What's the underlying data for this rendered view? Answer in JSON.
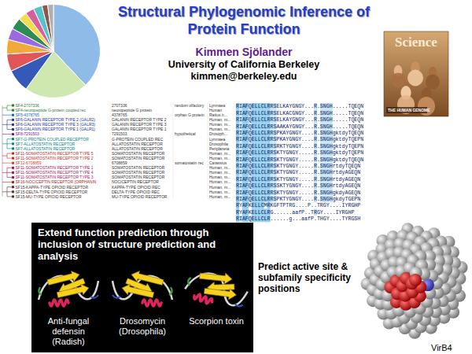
{
  "title": "Structural Phylogenomic Inference of Protein Function",
  "author": {
    "name": "Kimmen Sjölander",
    "affiliation": "University of California Berkeley",
    "email": "kimmen@berkeley.edu"
  },
  "cover": {
    "masthead": "Science",
    "headline": "THE HUMAN GENOME"
  },
  "chart_data": {
    "type": "pie",
    "values": [
      38,
      22,
      8,
      6,
      5,
      4,
      4,
      3,
      3,
      3,
      2,
      2
    ],
    "colors": [
      "#8fbbe8",
      "#cfe8b0",
      "#3559b8",
      "#e15759",
      "#f2a93b",
      "#9c6ade",
      "#2e8b57",
      "#f4dc4c",
      "#d65fa0",
      "#56c2c9",
      "#8c564b",
      "#b0b0b0"
    ]
  },
  "tree_table": {
    "rows": [
      {
        "label": "SF4-2707336",
        "id": "2707336",
        "description": "random olfactory",
        "organism": "Lymnaea"
      },
      {
        "label": "SF4-neuropeptide G-protein coupled rec",
        "id": "neuropeptide G protein",
        "organism": "Human"
      },
      {
        "label": "SF5-4378765",
        "id": "4378765",
        "description": "orphan G protein",
        "organism": "Rattus n..."
      },
      {
        "label": "SF6-GALANIN RECEPTOR TYPE 2 (GALR2)",
        "id": "GALANIN RECEPTOR TYPE 2",
        "organism": "Human, m..."
      },
      {
        "label": "SF6-GALANIN RECEPTOR TYPE 3 (GALR3)",
        "id": "GALANIN RECEPTOR TYPE 3",
        "organism": "Human, m..."
      },
      {
        "label": "SF6-GALANIN RECEPTOR TYPE 1 (GALR1)",
        "id": "GALANIN RECEPTOR TYPE 1",
        "organism": "Human, m..."
      },
      {
        "label": "SF8-7291503",
        "id": "7291503",
        "description": "hypothetical",
        "organism": "Drosoph..."
      },
      {
        "label": "SF7-G-PROTEIN COUPLED RECEPTOR",
        "id": "G-PROTEIN COUPLED REC",
        "organism": "Lymnaea"
      },
      {
        "label": "SF7-ALLATOSTATIN RECEPTOR",
        "id": "ALLATOSTATIN RECEPTOR",
        "organism": "Drosophila"
      },
      {
        "label": "SF7-ALLATOSTATIN RECEPTOR",
        "id": "ALLATOSTATIN RECEPTOR",
        "organism": "Periplaneta"
      },
      {
        "label": "SF11-SOMATOSTATIN RECEPTOR TYPE 5",
        "id": "SOMATOSTATIN RECEPTOR",
        "organism": "Human, m..."
      },
      {
        "label": "SF11-SOMATOSTATIN RECEPTOR TYPE 2",
        "id": "SOMATOSTATIN RECEPTOR",
        "organism": "Human, m..."
      },
      {
        "label": "SF12-6708859",
        "id": "6708859",
        "description": "somatostatin rec",
        "organism": "Carassius"
      },
      {
        "label": "SF11-SOMATOSTATIN RECEPTOR TYPE 1",
        "id": "SOMATOSTATIN RECEPTOR",
        "organism": "Human, m..."
      },
      {
        "label": "SF11-SOMATOSTATIN RECEPTOR TYPE 4",
        "id": "SOMATOSTATIN RECEPTOR",
        "organism": "Human, m..."
      },
      {
        "label": "SF11-SOMATOSTATIN RECEPTOR TYPE 3",
        "id": "SOMATOSTATIN RECEPTOR",
        "organism": "Human, m..."
      },
      {
        "label": "SF16-NOCICEPTIN RECEPTOR (ORPHANIN",
        "id": "NOCICEPTIN RECEPTOR",
        "organism": "Human, m..."
      },
      {
        "label": "SF15-KAPPA-TYPE OPIOID RECEPTOR",
        "id": "KAPPA-TYPE OPIOID REC",
        "organism": "Human, m..."
      },
      {
        "label": "SF15-DELTA-TYPE OPIOID RECEPTOR",
        "id": "DELTA-TYPE OPIOID REC",
        "organism": "Human, m..."
      },
      {
        "label": "SF15-MU-TYPE OPIOID RECEPTOR",
        "id": "MU-TYPE OPIOID RECEPTOR",
        "organism": "Human, m..."
      }
    ]
  },
  "alignment": {
    "sequences": [
      "RIAFQELLCLRRSELKAYGNGY...R.SNGH.....TQEQN",
      "RIAFQELLCLRRSELKACGNGY...R.SNGH.....TQEQN",
      "RIAFQELLCLRRSELKAYGNGY...R.SNGH.....TQEQN",
      "RIAFQELLCLRRSAAKAYGNGY...R.SNGH.....TQEQN",
      "RIAFQELLCLRRSPKAYGNGY....R.SNGHgktdyTQEQN",
      "RIAFQELLCLRRSPKAYGNGY....R.SNGHgktdyTQEPN",
      "RIAFQELLCLRRSRKTYGNGY....R.SNGHgktdyTQEPN",
      "RIAFQELLCLRRSKTYGNGY.....R.SNGHgktdyTQEPN",
      "RIAFQELLCLRRSKTYGNGY.....R.SNGHgktdyTQEQN",
      "RIAFQELLCLRRSKTYGNGY.....R.SNGHrtdyTQEQN",
      "RIAFQELLCLRRSKTYGNGY.....R.SNGHrtdyAGEQN",
      "RIAFQELLCLRRSKTYGNGY.....R.SNGHrtdyAGEQN",
      "RIAFQELLCLRRSSKTYGNGY....R.SNGHrtdyAGEQN",
      "RIAFQELLCLRRSKTYGNGY.....R.SNGHgkdyAGEQN",
      "RIAFQELLCLRRSPKTYGNGY....R.SNGHgkdyTGEPN",
      "RYAFKELLCMRKGFTPTRG....P..TRGY....IYRGHP",
      "RYAFKELLCLRG......aafP..TRGY....IYRGHP",
      "RIAFQELLCLR......g...aafP.THGY....TYRGSH"
    ]
  },
  "structure_panel": {
    "heading": "Extend function prediction through inclusion of structure prediction and analysis",
    "structures": [
      {
        "name": "Anti-fungal defensin",
        "source": "(Radish)"
      },
      {
        "name": "Drosomycin",
        "source": "(Drosophila)"
      },
      {
        "name": "Scorpion toxin"
      }
    ]
  },
  "active_site": {
    "text": "Predict active site & subfamily specificity positions",
    "protein": "VirB4"
  }
}
